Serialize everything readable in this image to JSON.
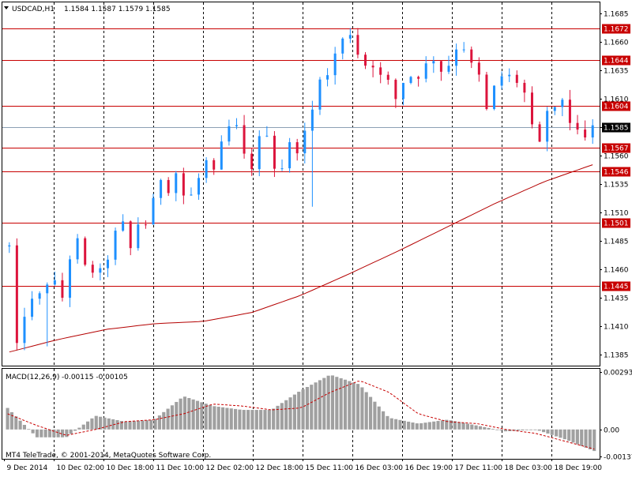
{
  "header": {
    "symbol": "USDCAD,H1",
    "ohlc": "1.1584 1.1587 1.1579 1.1585"
  },
  "macd_header": {
    "name": "MACD(12,26,9)",
    "values": "-0.00115 -0.00105"
  },
  "copyright": "MT4 TeleTrade, © 2001-2014, MetaQuotes Software Corp.",
  "colors": {
    "bull_candle": "#1e90ff",
    "bear_candle": "#dc143c",
    "level_line": "#c80000",
    "moving_average": "#b40000",
    "macd_histogram": "#a0a0a0",
    "macd_signal": "#c80000",
    "current_price_line": "#8ca0b4",
    "current_price_tag": "#000000"
  },
  "chart_data": [
    {
      "type": "candlestick",
      "title": "USDCAD,H1",
      "ylim": [
        1.1375,
        1.1695
      ],
      "y_ticks": [
        "1.1685",
        "1.1660",
        "1.1635",
        "1.1610",
        "1.1585",
        "1.1560",
        "1.1535",
        "1.1510",
        "1.1485",
        "1.1460",
        "1.1435",
        "1.1410",
        "1.1385"
      ],
      "x_ticks": [
        "9 Dec 2014",
        "10 Dec 02:00",
        "10 Dec 18:00",
        "11 Dec 10:00",
        "12 Dec 02:00",
        "12 Dec 18:00",
        "15 Dec 11:00",
        "16 Dec 03:00",
        "16 Dec 19:00",
        "17 Dec 11:00",
        "18 Dec 03:00",
        "18 Dec 19:00"
      ],
      "current_price": 1.1585,
      "horizontal_levels": [
        1.1672,
        1.1644,
        1.1604,
        1.1567,
        1.1546,
        1.1501,
        1.1445
      ],
      "anchors": [
        [
          1.148,
          1.1392,
          1.142,
          1.1432,
          1.1437,
          1.1448
        ],
        [
          1.1448,
          1.1435,
          1.147,
          1.1485,
          1.1462,
          1.1458
        ],
        [
          1.1458,
          1.147,
          1.1492,
          1.15,
          1.1478,
          1.15
        ],
        [
          1.15,
          1.152,
          1.154,
          1.153,
          1.1545,
          1.1525
        ],
        [
          1.1525,
          1.154,
          1.1555,
          1.1545,
          1.157,
          1.1585
        ],
        [
          1.1585,
          1.156,
          1.155,
          1.1575,
          1.158,
          1.155
        ],
        [
          1.155,
          1.157,
          1.1565,
          1.158,
          1.16,
          1.163
        ],
        [
          1.163,
          1.165,
          1.1662,
          1.1668,
          1.165,
          1.164
        ],
        [
          1.164,
          1.163,
          1.1625,
          1.161,
          1.1625,
          1.163
        ],
        [
          1.163,
          1.164,
          1.1645,
          1.1635,
          1.164,
          1.1655
        ],
        [
          1.1655,
          1.164,
          1.163,
          1.16,
          1.162,
          1.163
        ],
        [
          1.163,
          1.1625,
          1.1615,
          1.1585,
          1.157,
          1.16
        ],
        [
          1.16,
          1.161,
          1.159,
          1.158,
          1.1575,
          1.1585
        ]
      ],
      "moving_average": [
        1.1387,
        1.1398,
        1.1407,
        1.1412,
        1.1414,
        1.1422,
        1.1437,
        1.1456,
        1.1476,
        1.1497,
        1.1518,
        1.1537,
        1.1552
      ],
      "candles_per_segment": 6,
      "spike_lows": [
        {
          "index": 5,
          "low": 1.1392
        },
        {
          "index": 40,
          "low": 1.1515
        },
        {
          "index": 101,
          "low": 1.154
        },
        {
          "index": 125,
          "low": 1.1558
        }
      ]
    },
    {
      "type": "bar",
      "title": "MACD(12,26,9)",
      "ylim": [
        -0.0015,
        0.0031
      ],
      "y_ticks": [
        "0.00293",
        "0.00",
        "-0.00137"
      ],
      "histogram_anchors": [
        0.0011,
        -0.0004,
        -0.0004,
        0.0007,
        0.0004,
        0.0005,
        0.0017,
        0.0012,
        0.001,
        0.001,
        0.002,
        0.0028,
        0.0023,
        0.0006,
        0.0003,
        0.0005,
        0.0002,
        -0.0001,
        0.0,
        -0.0005,
        -0.0011
      ],
      "signal_anchors": [
        0.0008,
        0.0002,
        -0.0003,
        0.0,
        0.0004,
        0.0005,
        0.0008,
        0.0013,
        0.0012,
        0.001,
        0.0011,
        0.0019,
        0.0025,
        0.0019,
        0.0008,
        0.0004,
        0.0003,
        0.0,
        -0.0002,
        -0.0006,
        -0.001
      ]
    }
  ]
}
